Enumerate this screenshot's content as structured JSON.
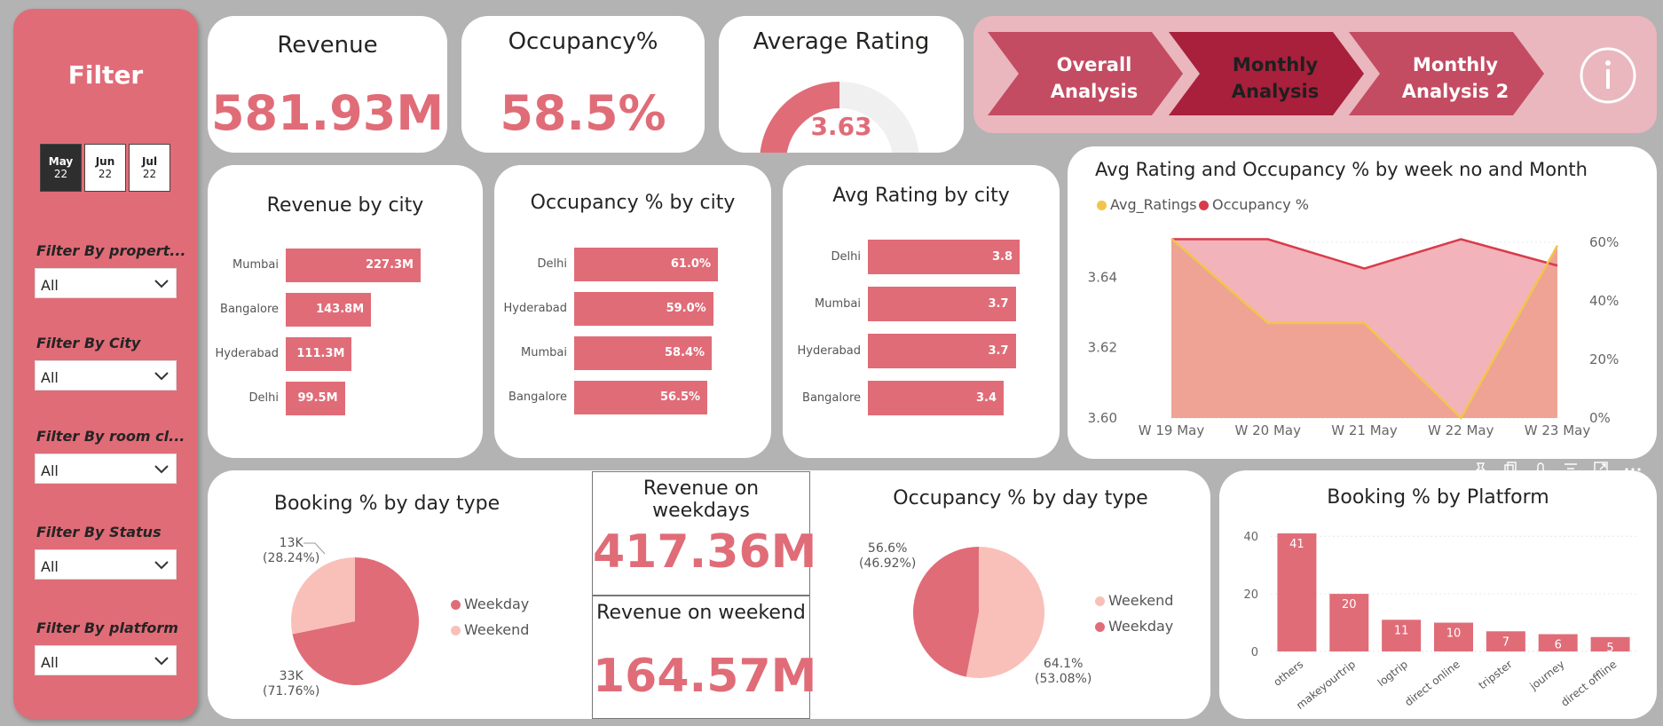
{
  "filter": {
    "title": "Filter",
    "months": [
      {
        "m": "May",
        "y": "22",
        "selected": true
      },
      {
        "m": "Jun",
        "y": "22",
        "selected": false
      },
      {
        "m": "Jul",
        "y": "22",
        "selected": false
      }
    ],
    "fields": [
      {
        "label": "Filter By propert...",
        "value": "All"
      },
      {
        "label": "Filter By City",
        "value": "All"
      },
      {
        "label": "Filter By room cl...",
        "value": "All"
      },
      {
        "label": "Filter By Status",
        "value": "All"
      },
      {
        "label": "Filter By platform",
        "value": "All"
      }
    ]
  },
  "kpis": {
    "revenue": {
      "title": "Revenue",
      "value": "581.93M"
    },
    "occupancy": {
      "title": "Occupancy%",
      "value": "58.5%"
    },
    "rating": {
      "title": "Average Rating",
      "value": "3.63",
      "gauge_fraction": 0.5
    }
  },
  "nav": {
    "buttons": [
      {
        "label": "Overall Analysis",
        "active": false
      },
      {
        "label": "Monthly Analysis",
        "active": true
      },
      {
        "label": "Monthly Analysis 2",
        "active": false
      }
    ],
    "info_icon": "info-icon"
  },
  "colors": {
    "accent": "#e06c78",
    "accent_dark": "#a8203c",
    "light_pink": "#f9c0b9",
    "yellow": "#f2c44d"
  },
  "revenue_by_city": {
    "title": "Revenue by city",
    "chart_data": {
      "type": "bar",
      "categories": [
        "Mumbai",
        "Bangalore",
        "Hyderabad",
        "Delhi"
      ],
      "values": [
        227.3,
        143.8,
        111.3,
        99.5
      ],
      "labels": [
        "227.3M",
        "143.8M",
        "111.3M",
        "99.5M"
      ]
    }
  },
  "occupancy_by_city": {
    "title": "Occupancy % by city",
    "chart_data": {
      "type": "bar",
      "categories": [
        "Delhi",
        "Hyderabad",
        "Mumbai",
        "Bangalore"
      ],
      "values": [
        61.0,
        59.0,
        58.4,
        56.5
      ],
      "labels": [
        "61.0%",
        "59.0%",
        "58.4%",
        "56.5%"
      ]
    }
  },
  "rating_by_city": {
    "title": "Avg Rating by city",
    "chart_data": {
      "type": "bar",
      "categories": [
        "Delhi",
        "Mumbai",
        "Hyderabad",
        "Bangalore"
      ],
      "values": [
        3.8,
        3.7,
        3.7,
        3.4
      ],
      "labels": [
        "3.8",
        "3.7",
        "3.7",
        "3.4"
      ]
    }
  },
  "weekly": {
    "title": "Avg Rating and Occupancy % by week no and Month",
    "legend": [
      "Avg_Ratings",
      "Occupancy %"
    ],
    "chart_data": {
      "type": "area",
      "x": [
        "W 19 May",
        "W 20 May",
        "W 21 May",
        "W 22 May",
        "W 23 May"
      ],
      "series": [
        {
          "name": "Avg_Ratings",
          "values": [
            3.651,
            3.627,
            3.627,
            3.6,
            3.649
          ],
          "axis": "left"
        },
        {
          "name": "Occupancy %",
          "values": [
            61,
            61,
            51,
            61,
            52
          ],
          "axis": "right"
        }
      ],
      "y_left": {
        "ticks": [
          "3.64",
          "3.62",
          "3.60"
        ],
        "range": [
          3.6,
          3.655
        ]
      },
      "y_right": {
        "ticks": [
          "60%",
          "40%",
          "20%",
          "0%"
        ],
        "range": [
          0,
          66
        ]
      }
    }
  },
  "booking_day_type": {
    "title": "Booking % by day type",
    "chart_data": {
      "type": "pie",
      "categories": [
        "Weekday",
        "Weekend"
      ],
      "values": [
        71.76,
        28.24
      ]
    },
    "weekday_label": [
      "33K",
      "(71.76%)"
    ],
    "weekend_label": [
      "13K",
      "(28.24%)"
    ],
    "legend": [
      "Weekday",
      "Weekend"
    ]
  },
  "revenue_weekdays": {
    "title": "Revenue on weekdays",
    "value": "417.36M"
  },
  "revenue_weekend": {
    "title": "Revenue on weekend",
    "value": "164.57M"
  },
  "occupancy_day_type": {
    "title": "Occupancy % by day type",
    "chart_data": {
      "type": "pie",
      "categories": [
        "Weekend",
        "Weekday"
      ],
      "values": [
        53.08,
        46.92
      ]
    },
    "weekday_label": [
      "56.6%",
      "(46.92%)"
    ],
    "weekend_label": [
      "64.1%",
      "(53.08%)"
    ],
    "legend": [
      "Weekend",
      "Weekday"
    ]
  },
  "platform": {
    "title": "Booking % by Platform",
    "chart_data": {
      "type": "bar",
      "categories": [
        "others",
        "makeyourtrip",
        "logtrip",
        "direct online",
        "tripster",
        "journey",
        "direct offline"
      ],
      "values": [
        41,
        20,
        11,
        10,
        7,
        6,
        5
      ],
      "yticks": [
        "40",
        "20",
        "0"
      ],
      "ylim": [
        0,
        45
      ]
    }
  },
  "visual_header_icons": [
    "pin-icon",
    "copy-icon",
    "bell-icon",
    "filter-icon",
    "focus-icon",
    "more-icon"
  ]
}
